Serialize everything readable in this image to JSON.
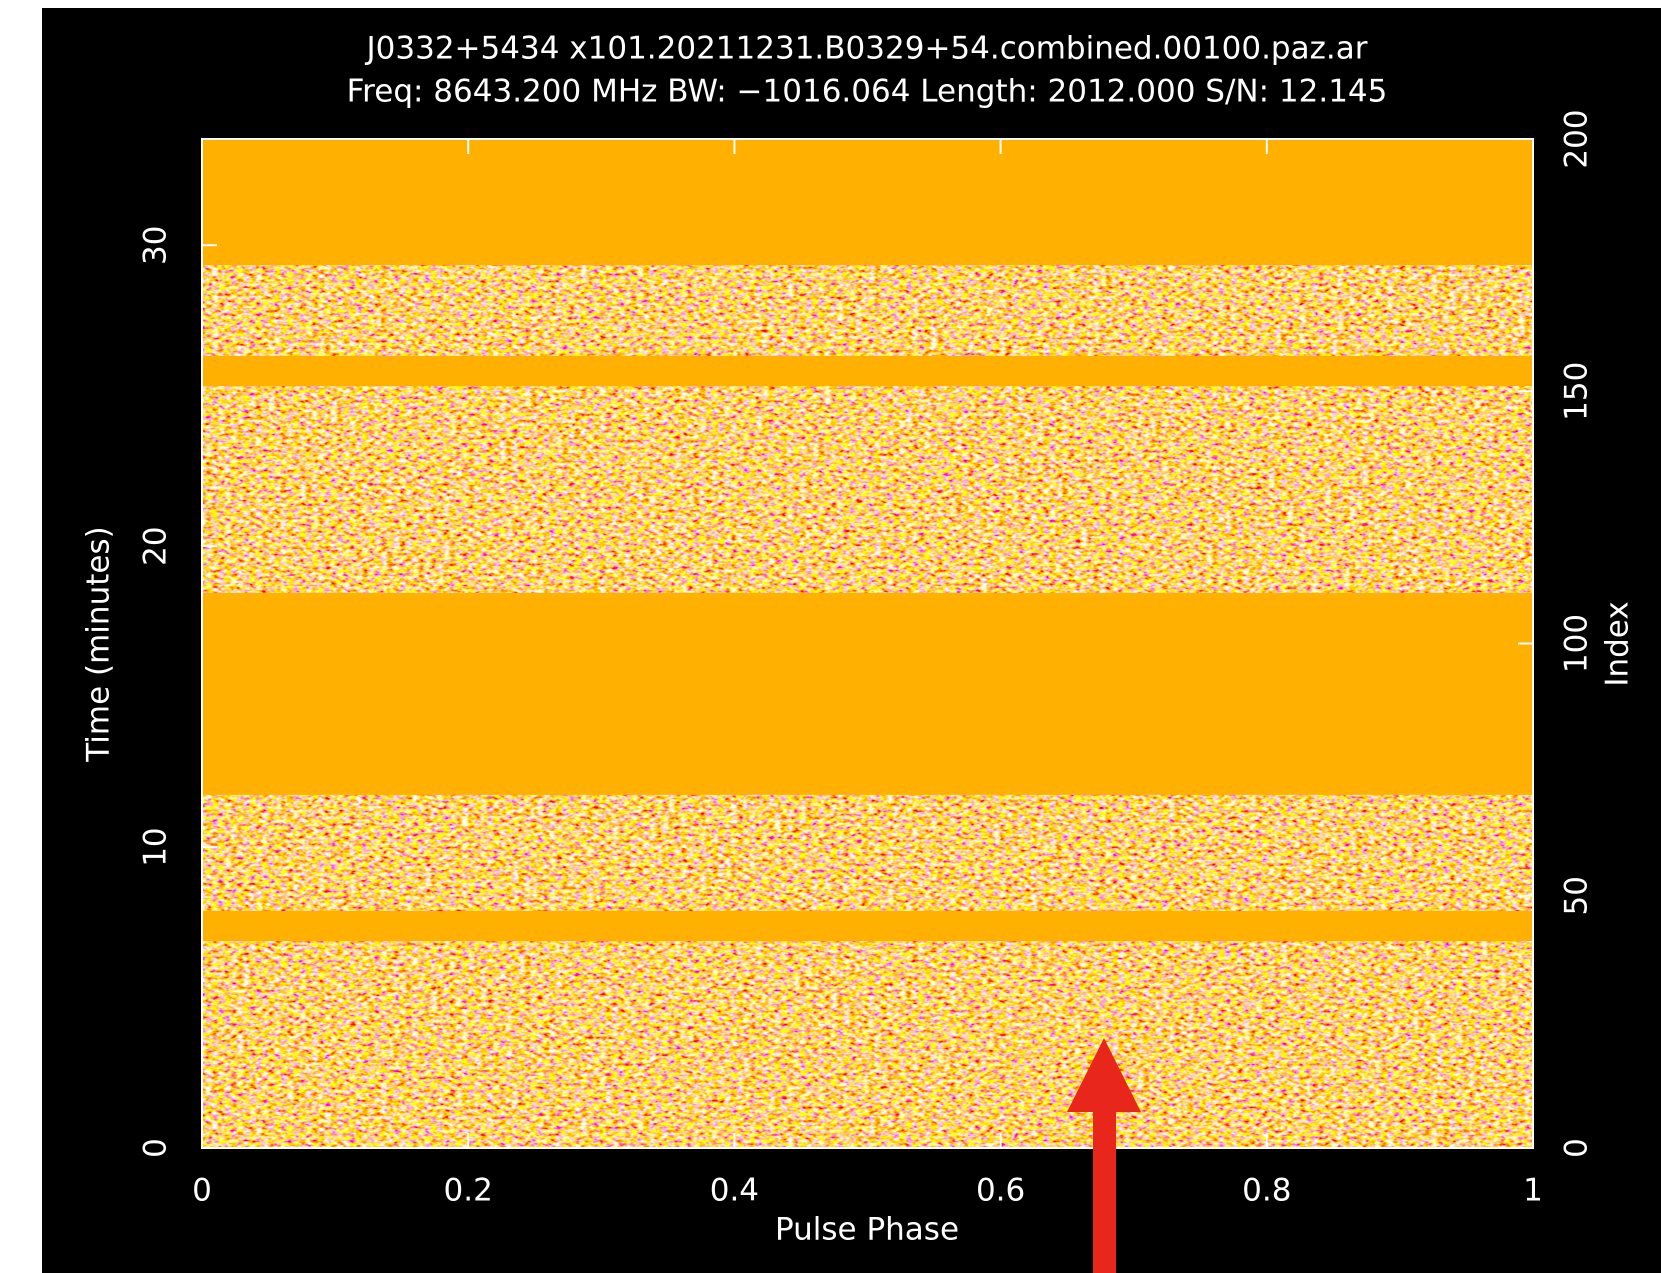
{
  "chart_data": {
    "type": "image",
    "title": "J0332+5434 x101.20211231.B0329+54.combined.00100.paz.ar",
    "subtitle": "Freq: 8643.200 MHz BW: −1016.064 Length: 2012.000 S/N: 12.145",
    "xlabel": "Pulse Phase",
    "ylabel": "Time (minutes)",
    "y2label": "Index",
    "xlim": [
      0,
      1
    ],
    "xticks": [
      0,
      0.2,
      0.4,
      0.6,
      0.8,
      1
    ],
    "ylim": [
      0,
      33.53
    ],
    "yticks": [
      0,
      10,
      20,
      30
    ],
    "y2lim": [
      0,
      200
    ],
    "y2ticks": [
      0,
      50,
      100,
      150,
      200
    ],
    "masked_index_ranges": [
      [
        175,
        200
      ],
      [
        151,
        157
      ],
      [
        70,
        110
      ],
      [
        41,
        47
      ]
    ],
    "masked_color": "#ffb000"
  }
}
